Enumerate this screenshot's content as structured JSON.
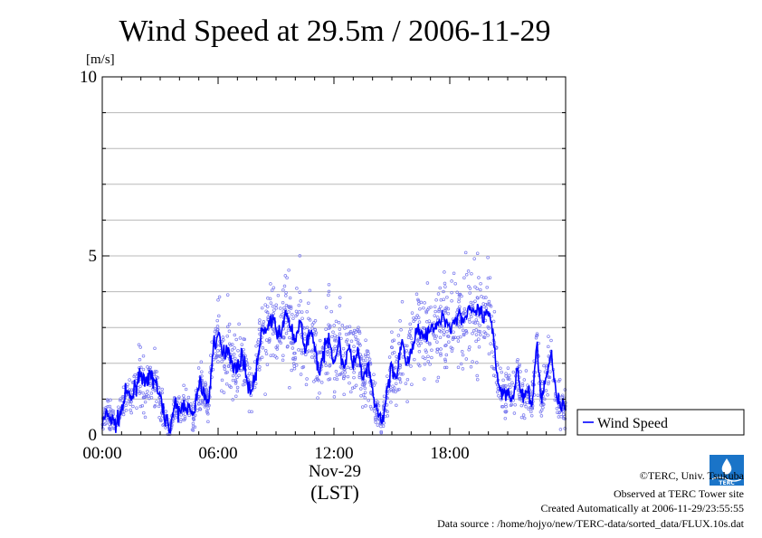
{
  "chart_data": {
    "type": "line",
    "title": "Wind Speed at 29.5m / 2006-11-29",
    "ylabel": "[m/s]",
    "ylim": [
      0,
      10
    ],
    "y_ticks": [
      "0",
      "5",
      "10"
    ],
    "xlim_hours": [
      0,
      24
    ],
    "x_ticks": [
      "00:00",
      "06:00",
      "12:00",
      "18:00"
    ],
    "x_date_label": "Nov-29",
    "x_unit_label": "(LST)",
    "grid": true,
    "legend_position": "right",
    "series": [
      {
        "name": "Wind Speed",
        "color": "#0000ff",
        "scatter_color": "#7777ee",
        "x_hours": [
          0,
          0.25,
          0.5,
          0.75,
          1,
          1.25,
          1.5,
          1.75,
          2,
          2.25,
          2.5,
          2.75,
          3,
          3.25,
          3.5,
          3.75,
          4,
          4.25,
          4.5,
          4.75,
          5,
          5.25,
          5.5,
          5.75,
          6,
          6.25,
          6.5,
          6.75,
          7,
          7.25,
          7.5,
          7.75,
          8,
          8.25,
          8.5,
          8.75,
          9,
          9.25,
          9.5,
          9.75,
          10,
          10.25,
          10.5,
          10.75,
          11,
          11.25,
          11.5,
          11.75,
          12,
          12.25,
          12.5,
          12.75,
          13,
          13.25,
          13.5,
          13.75,
          14,
          14.25,
          14.5,
          14.75,
          15,
          15.25,
          15.5,
          15.75,
          16,
          16.25,
          16.5,
          16.75,
          17,
          17.25,
          17.5,
          17.75,
          18,
          18.25,
          18.5,
          18.75,
          19,
          19.25,
          19.5,
          19.75,
          20,
          20.25,
          20.5,
          20.75,
          21,
          21.25,
          21.5,
          21.75,
          22,
          22.25,
          22.5,
          22.75,
          23,
          23.25,
          23.5,
          23.75
        ],
        "values": [
          0.3,
          0.6,
          0.4,
          0.3,
          0.7,
          1.2,
          1.0,
          1.4,
          1.8,
          1.3,
          1.7,
          1.5,
          1.0,
          0.5,
          0.2,
          0.8,
          0.6,
          0.9,
          0.7,
          0.5,
          1.5,
          1.2,
          0.8,
          2.5,
          2.8,
          2.2,
          2.5,
          2.0,
          1.8,
          2.3,
          1.5,
          1.2,
          1.9,
          2.8,
          3.0,
          3.2,
          3.0,
          2.7,
          3.5,
          3.0,
          2.5,
          3.3,
          2.2,
          3.0,
          2.5,
          1.7,
          2.3,
          2.8,
          2.0,
          2.6,
          1.9,
          2.4,
          2.0,
          2.3,
          1.5,
          1.9,
          1.2,
          0.6,
          0.3,
          1.2,
          2.0,
          1.5,
          2.6,
          2.0,
          2.3,
          2.8,
          3.0,
          2.7,
          3.1,
          2.9,
          3.2,
          3.3,
          3.0,
          3.2,
          3.4,
          3.2,
          3.6,
          3.3,
          3.5,
          3.2,
          3.4,
          2.8,
          1.5,
          1.1,
          1.3,
          1.0,
          1.8,
          1.0,
          1.2,
          0.8,
          2.5,
          1.0,
          1.6,
          2.3,
          1.2,
          0.8
        ]
      }
    ]
  },
  "footer": {
    "copyright": "©TERC, Univ. Tsukuba",
    "observed": "Observed at TERC Tower site",
    "created": "Created Automatically at 2006-11-29/23:55:55",
    "source": "Data source : /home/hojyo/new/TERC-data/sorted_data/FLUX.10s.dat"
  },
  "logo": {
    "text": "TERC"
  }
}
